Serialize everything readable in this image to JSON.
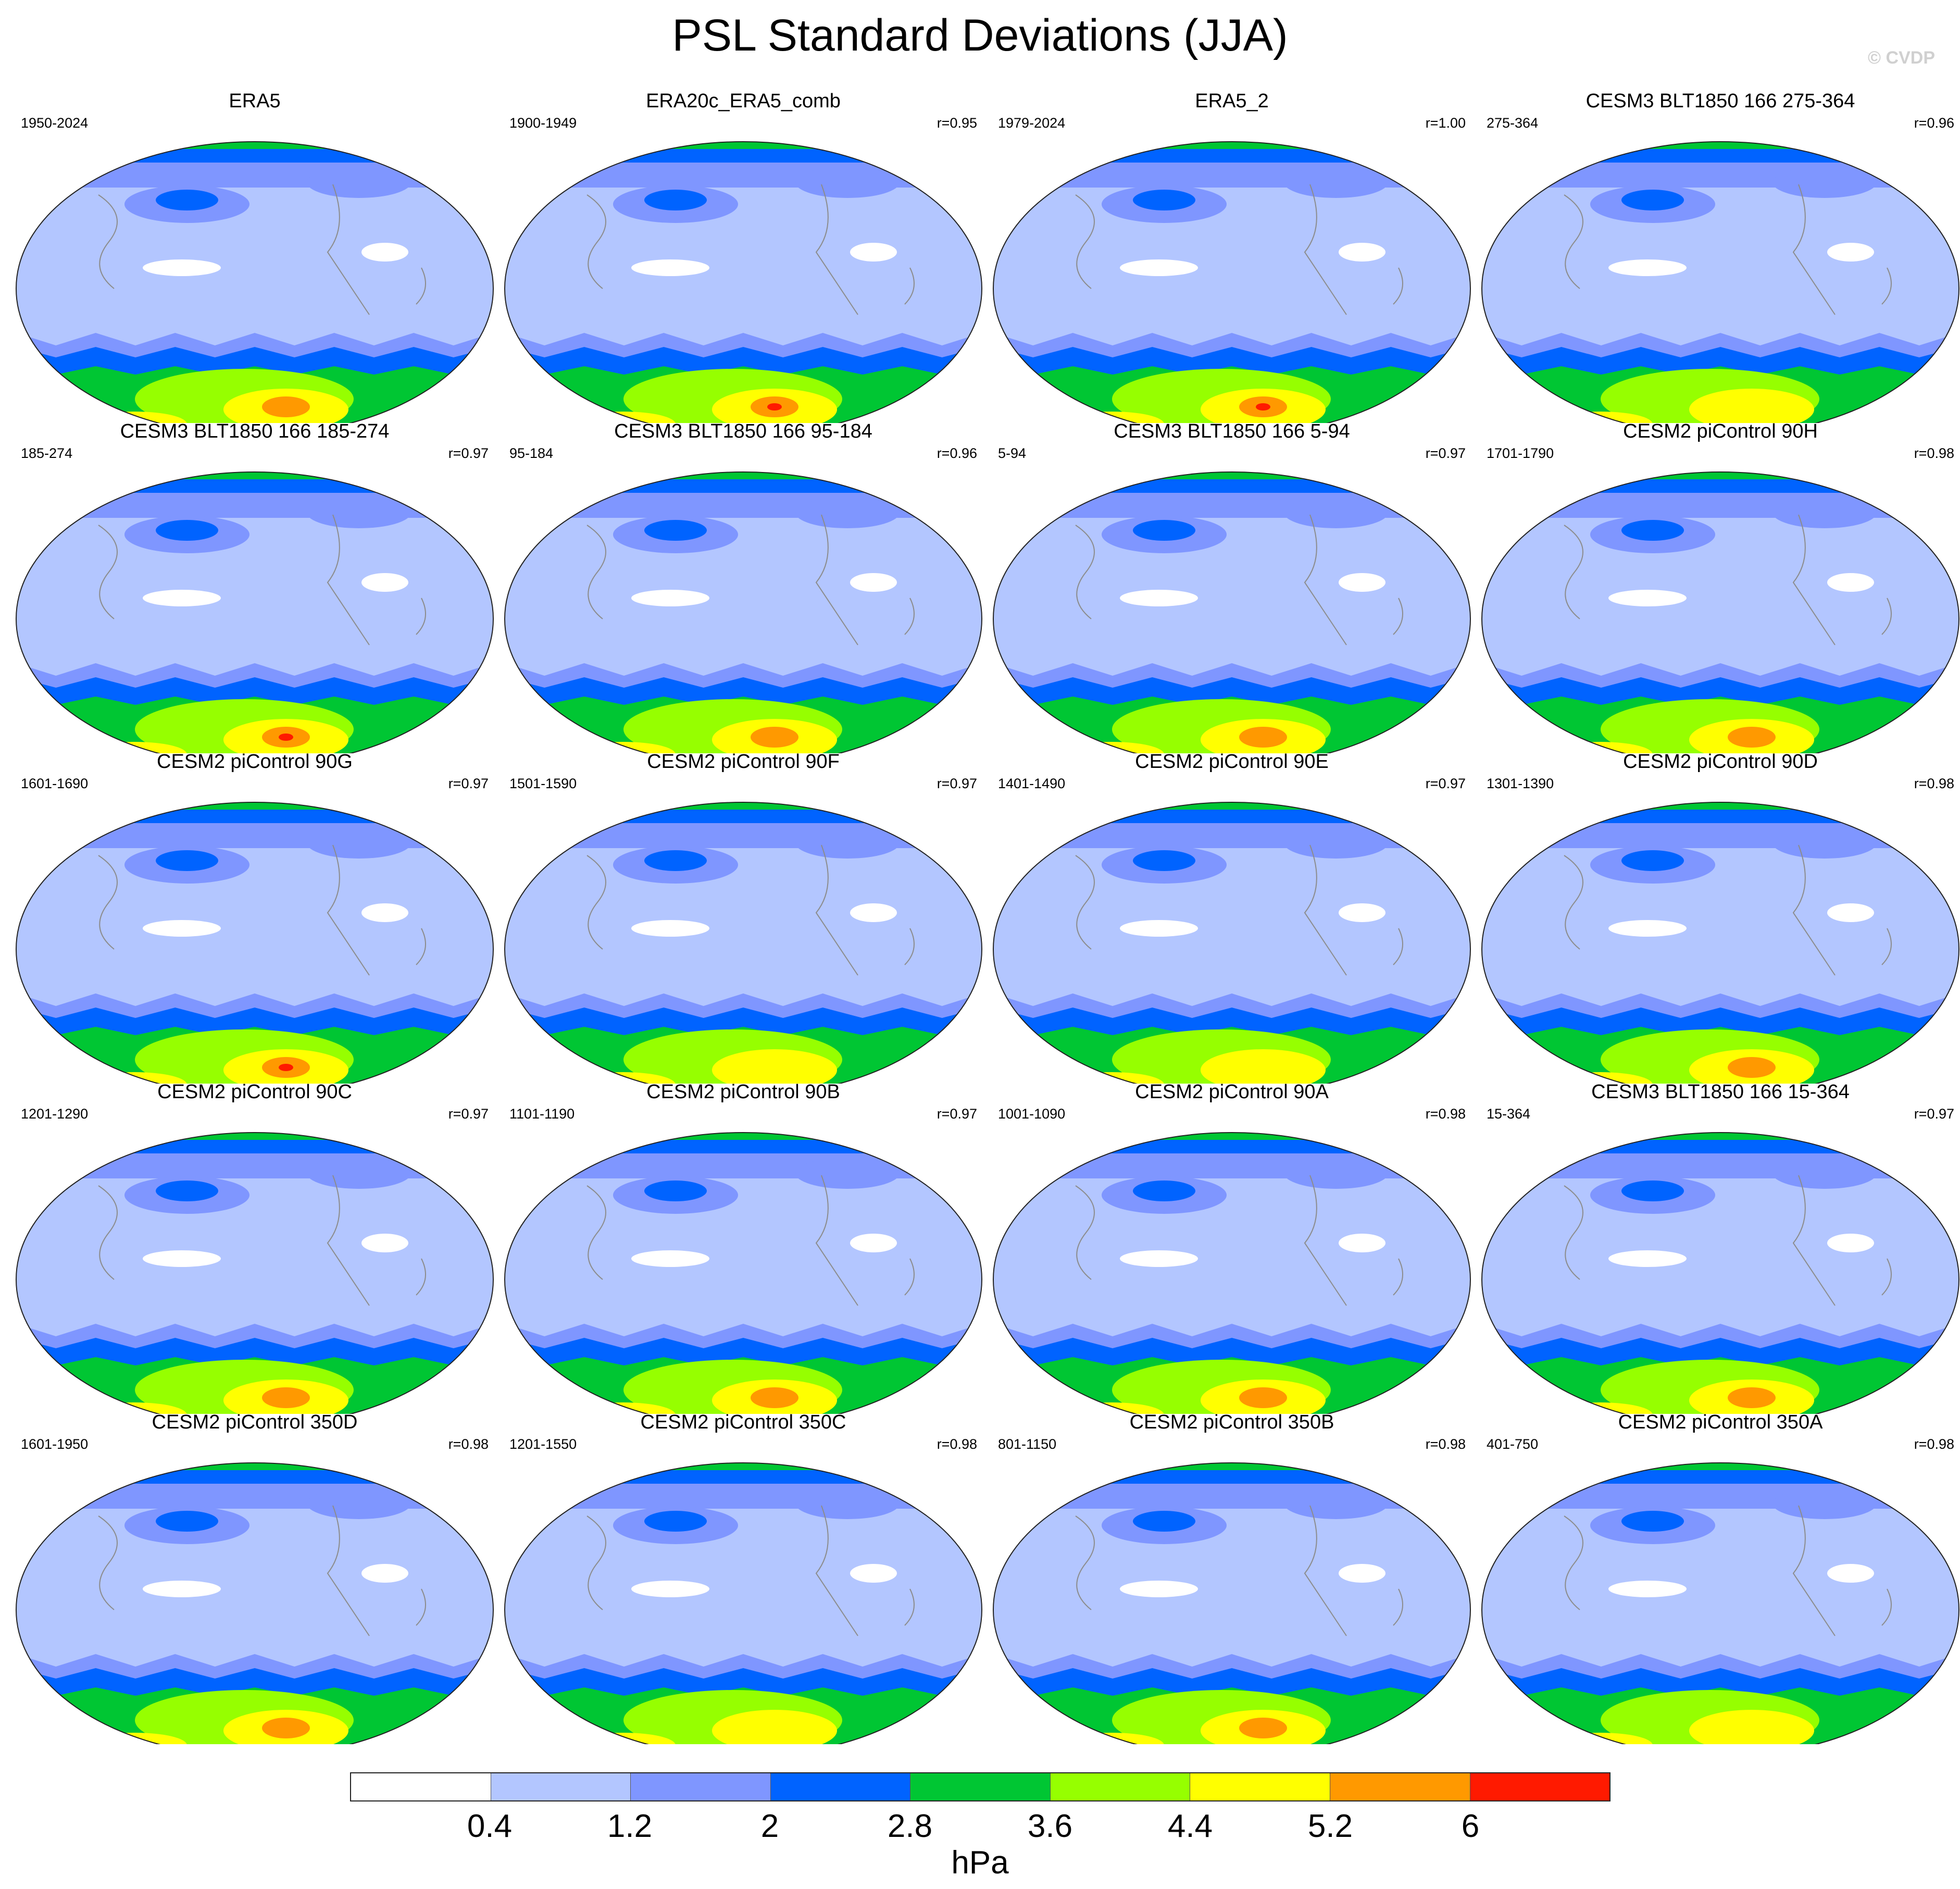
{
  "title": "PSL Standard Deviations (JJA)",
  "copyright": "© CVDP",
  "colors": {
    "c0": "#ffffff",
    "c1": "#b3c6ff",
    "c2": "#7f96ff",
    "c3": "#0063ff",
    "c4": "#00c633",
    "c5": "#96ff00",
    "c6": "#ffff00",
    "c7": "#ff9900",
    "c8": "#ff1a00",
    "coast": "#8c8c8c",
    "border": "#222222"
  },
  "colorbar": {
    "labels": [
      "0.4",
      "1.2",
      "2",
      "2.8",
      "3.6",
      "4.4",
      "5.2",
      "6"
    ],
    "units": "hPa"
  },
  "panels": [
    {
      "title": "ERA5",
      "range": "1950-2024",
      "corr": "",
      "south_max": 7
    },
    {
      "title": "ERA20c_ERA5_comb",
      "range": "1900-1949",
      "corr": "r=0.95",
      "south_max": 8
    },
    {
      "title": "ERA5_2",
      "range": "1979-2024",
      "corr": "r=1.00",
      "south_max": 8
    },
    {
      "title": "CESM3 BLT1850 166 275-364",
      "range": "275-364",
      "corr": "r=0.96",
      "south_max": 6
    },
    {
      "title": "CESM3 BLT1850 166 185-274",
      "range": "185-274",
      "corr": "r=0.97",
      "south_max": 8
    },
    {
      "title": "CESM3 BLT1850 166 95-184",
      "range": "95-184",
      "corr": "r=0.96",
      "south_max": 7
    },
    {
      "title": "CESM3 BLT1850 166 5-94",
      "range": "5-94",
      "corr": "r=0.97",
      "south_max": 7
    },
    {
      "title": "CESM2 piControl 90H",
      "range": "1701-1790",
      "corr": "r=0.98",
      "south_max": 7
    },
    {
      "title": "CESM2 piControl 90G",
      "range": "1601-1690",
      "corr": "r=0.97",
      "south_max": 8
    },
    {
      "title": "CESM2 piControl 90F",
      "range": "1501-1590",
      "corr": "r=0.97",
      "south_max": 6
    },
    {
      "title": "CESM2 piControl 90E",
      "range": "1401-1490",
      "corr": "r=0.97",
      "south_max": 6
    },
    {
      "title": "CESM2 piControl 90D",
      "range": "1301-1390",
      "corr": "r=0.98",
      "south_max": 7
    },
    {
      "title": "CESM2 piControl 90C",
      "range": "1201-1290",
      "corr": "r=0.97",
      "south_max": 7
    },
    {
      "title": "CESM2 piControl 90B",
      "range": "1101-1190",
      "corr": "r=0.97",
      "south_max": 7
    },
    {
      "title": "CESM2 piControl 90A",
      "range": "1001-1090",
      "corr": "r=0.98",
      "south_max": 7
    },
    {
      "title": "CESM3 BLT1850 166 15-364",
      "range": "15-364",
      "corr": "r=0.97",
      "south_max": 7
    },
    {
      "title": "CESM2 piControl 350D",
      "range": "1601-1950",
      "corr": "r=0.98",
      "south_max": 7
    },
    {
      "title": "CESM2 piControl 350C",
      "range": "1201-1550",
      "corr": "r=0.98",
      "south_max": 6
    },
    {
      "title": "CESM2 piControl 350B",
      "range": "801-1150",
      "corr": "r=0.98",
      "south_max": 7
    },
    {
      "title": "CESM2 piControl 350A",
      "range": "401-750",
      "corr": "r=0.98",
      "south_max": 6
    }
  ]
}
